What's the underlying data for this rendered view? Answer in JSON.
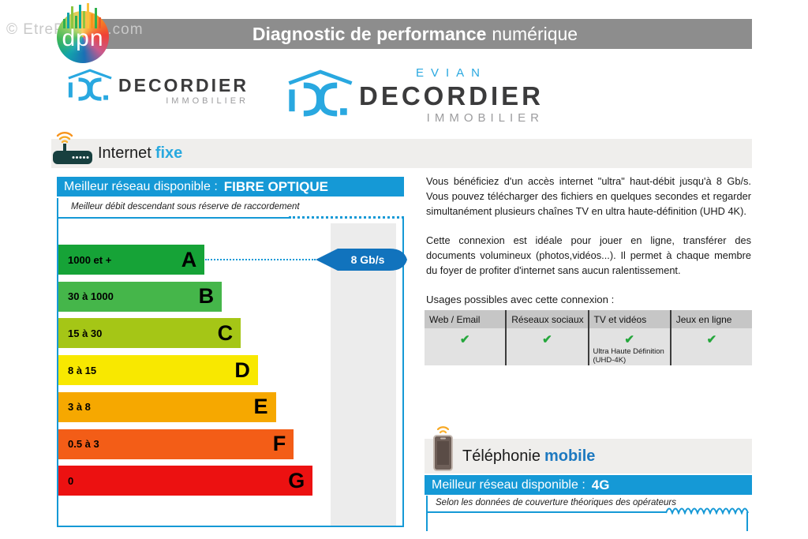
{
  "watermark": "© EtreProprio.com",
  "header": {
    "title_bold": "Diagnostic de performance",
    "title_light": "numérique"
  },
  "dpn_logo_text": "dpn",
  "agency_logo_small": {
    "name": "DECORDIER",
    "subtitle": "IMMOBILIER"
  },
  "agency_logo_large": {
    "city": "EVIAN",
    "name": "DECORDIER",
    "subtitle": "IMMOBILIER"
  },
  "internet_fixe": {
    "title": "Internet",
    "title_accent": "fixe",
    "banner_label": "Meilleur réseau disponible :",
    "banner_value": "FIBRE OPTIQUE",
    "note": "Meilleur débit descendant sous réserve de raccordement",
    "chart_data": {
      "type": "bar",
      "orientation": "horizontal",
      "categories": [
        "A",
        "B",
        "C",
        "D",
        "E",
        "F",
        "G"
      ],
      "ranges_mbps": [
        "1000 et +",
        "30 à 1000",
        "15 à 30",
        "8 à 15",
        "3 à 8",
        "0.5 à 3",
        "0"
      ],
      "colors": [
        "#16a337",
        "#45b64a",
        "#a5c616",
        "#f8e800",
        "#f6a800",
        "#f35d17",
        "#ec1111"
      ],
      "bar_lengths_pct": [
        42.5,
        47.5,
        53,
        58,
        63.2,
        68.4,
        73.9
      ],
      "selected_grade": "A",
      "selected_value": "8 Gb/s"
    }
  },
  "description": {
    "p1": "Vous bénéficiez d'un accès internet \"ultra\" haut-débit jusqu'à 8 Gb/s. Vous pouvez télécharger des fichiers en quelques secondes et regarder simultanément plusieurs chaînes TV en ultra haute-définition (UHD 4K).",
    "p2": "Cette connexion est idéale pour jouer en ligne, transférer des documents volumineux (photos,vidéos...). Il permet à chaque membre du foyer de profiter d'internet sans aucun ralentissement."
  },
  "usages": {
    "title": "Usages possibles avec cette connexion :",
    "check_icon": "✔",
    "columns": [
      {
        "label": "Web / Email",
        "checked": true,
        "note": ""
      },
      {
        "label": "Réseaux sociaux",
        "checked": true,
        "note": ""
      },
      {
        "label": "TV et vidéos",
        "checked": true,
        "note": "Ultra Haute Définition (UHD-4K)"
      },
      {
        "label": "Jeux en ligne",
        "checked": true,
        "note": ""
      }
    ]
  },
  "mobile": {
    "title": "Téléphonie",
    "title_accent": "mobile",
    "banner_label": "Meilleur réseau disponible :",
    "banner_value": "4G",
    "note": "Selon les données de couverture théoriques des opérateurs"
  },
  "colors": {
    "accent_blue": "#1599d6",
    "fixe_accent": "#29a9df",
    "mobile_accent": "#1d79c0",
    "tag_blue": "#1173bd",
    "check_green": "#25a73c",
    "header_gray": "#8d8d8d"
  }
}
